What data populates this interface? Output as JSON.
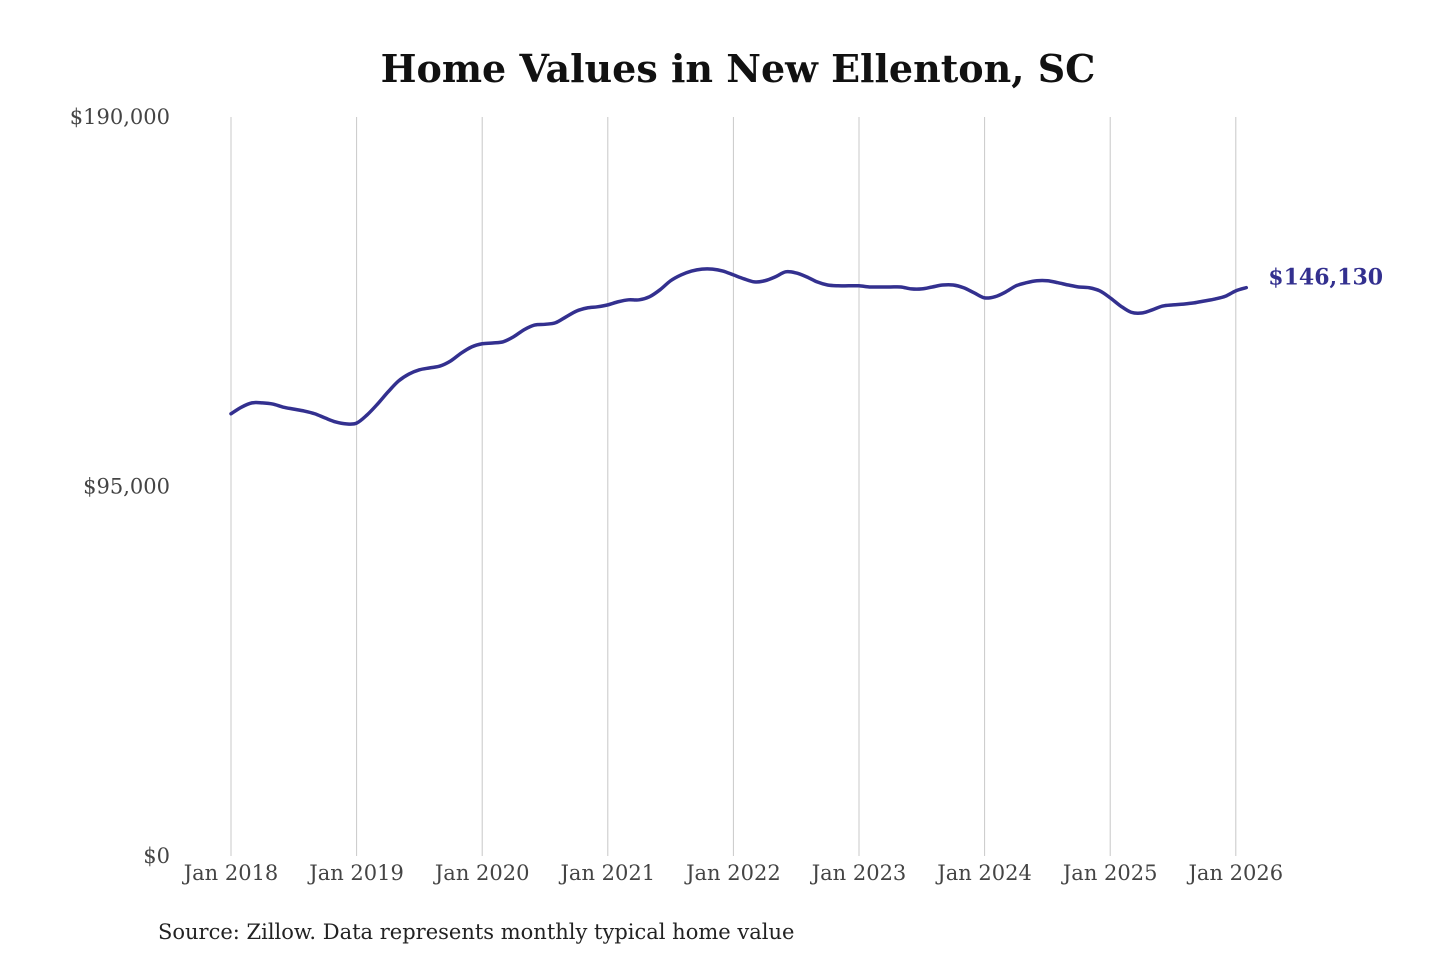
{
  "chart_data": {
    "type": "line",
    "title": "Home Values in New Ellenton, SC",
    "xlabel": "",
    "ylabel": "",
    "ylim": [
      0,
      190000
    ],
    "y_ticks": [
      {
        "value": 0,
        "label": "$0"
      },
      {
        "value": 95000,
        "label": "$95,000"
      },
      {
        "value": 190000,
        "label": "$190,000"
      }
    ],
    "x_ticks": [
      "Jan 2018",
      "Jan 2019",
      "Jan 2020",
      "Jan 2021",
      "Jan 2022",
      "Jan 2023",
      "Jan 2024",
      "Jan 2025",
      "Jan 2026"
    ],
    "x_start_year": 2018,
    "grid": "vertical",
    "line_color": "#33308f",
    "series": [
      {
        "name": "Typical home value",
        "start": "Jan 2018",
        "frequency": "monthly",
        "values": [
          113700,
          115400,
          116500,
          116500,
          116200,
          115400,
          114900,
          114400,
          113700,
          112600,
          111600,
          111100,
          111300,
          113400,
          116200,
          119300,
          122100,
          123900,
          125000,
          125500,
          126000,
          127300,
          129300,
          130900,
          131700,
          131900,
          132200,
          133500,
          135300,
          136500,
          136700,
          137100,
          138600,
          140100,
          140900,
          141200,
          141700,
          142500,
          143000,
          143000,
          143800,
          145600,
          147900,
          149400,
          150400,
          150900,
          150900,
          150400,
          149400,
          148400,
          147600,
          147900,
          148900,
          150200,
          149900,
          148900,
          147600,
          146800,
          146600,
          146600,
          146600,
          146300,
          146300,
          146300,
          146300,
          145800,
          145800,
          146300,
          146800,
          146800,
          146100,
          144800,
          143500,
          143800,
          145000,
          146600,
          147400,
          147900,
          147900,
          147400,
          146800,
          146300,
          146100,
          145300,
          143500,
          141400,
          139800,
          139600,
          140400,
          141400,
          141700,
          141900,
          142200,
          142700,
          143200,
          143900,
          145300,
          146130
        ]
      }
    ],
    "end_label": "$146,130",
    "source": "Source: Zillow. Data represents monthly typical home value"
  }
}
